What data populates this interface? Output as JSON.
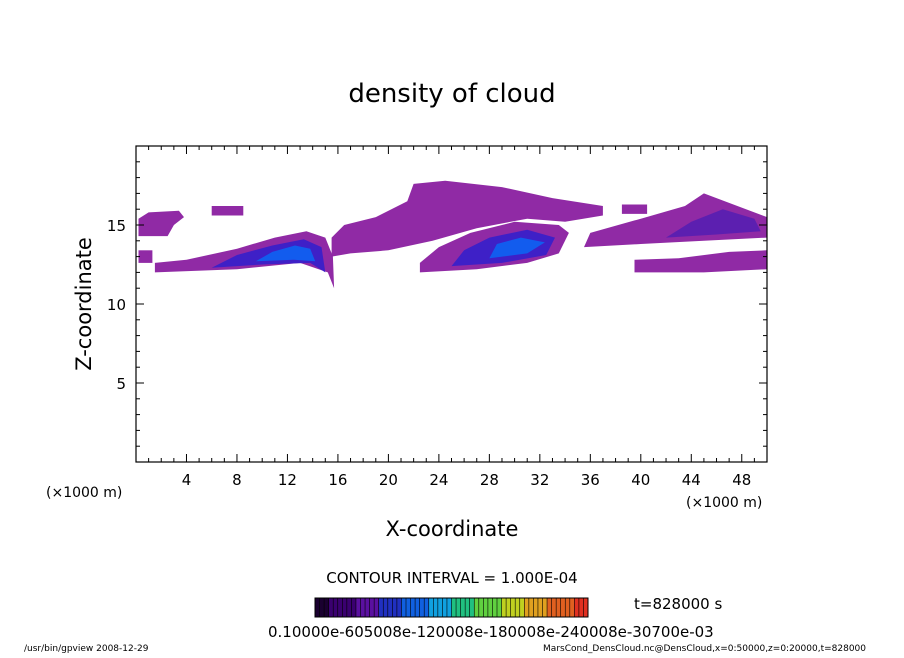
{
  "chart_data": {
    "type": "heatmap",
    "title": "density of cloud",
    "xlabel": "X-coordinate",
    "ylabel": "Z-coordinate",
    "x_unit": "(×1000 m)",
    "x_unit_right": "(×1000 m)",
    "xlim": [
      0,
      50
    ],
    "ylim": [
      0,
      20
    ],
    "x_ticks": [
      "4",
      "8",
      "12",
      "16",
      "20",
      "24",
      "28",
      "32",
      "36",
      "40",
      "44",
      "48"
    ],
    "x_tick_values": [
      4,
      8,
      12,
      16,
      20,
      24,
      28,
      32,
      36,
      40,
      44,
      48
    ],
    "y_ticks": [
      "5",
      "10",
      "15"
    ],
    "y_tick_values": [
      5,
      10,
      15
    ],
    "contour_interval": "CONTOUR INTERVAL = 1.000E-04",
    "time_label": "t=828000 s",
    "colorbar_labels": "0.10000e-605008e-120008e-180008e-240008e-30700e-03",
    "colorbar_min": 0.0001,
    "colorbar_max": 0.0007,
    "colorbar_colors": [
      "#1a0030",
      "#3a0070",
      "#5a10a0",
      "#2030c0",
      "#1060e0",
      "#10a0e0",
      "#20c080",
      "#60d040",
      "#c0d020",
      "#e0a020",
      "#e06020",
      "#e03020"
    ],
    "cloud_colors": [
      "#8a1fa0",
      "#5a1fb0",
      "#3a20c8",
      "#1a40e0",
      "#1060f0"
    ],
    "cloud_regions": [
      {
        "name": "left-band-wedge",
        "level": 0,
        "points": [
          [
            1.5,
            12.0
          ],
          [
            8,
            12.2
          ],
          [
            13,
            12.6
          ],
          [
            15.2,
            12.0
          ],
          [
            15.7,
            11.0
          ],
          [
            15.6,
            13.0
          ],
          [
            15.0,
            14.2
          ],
          [
            13.5,
            14.6
          ],
          [
            11,
            14.2
          ],
          [
            8,
            13.5
          ],
          [
            4,
            12.8
          ],
          [
            1.5,
            12.6
          ]
        ]
      },
      {
        "name": "left-band-core",
        "level": 2,
        "points": [
          [
            6,
            12.3
          ],
          [
            10,
            12.5
          ],
          [
            13.8,
            12.6
          ],
          [
            15.0,
            12.0
          ],
          [
            14.7,
            13.6
          ],
          [
            13.3,
            14.1
          ],
          [
            10.8,
            13.7
          ],
          [
            8,
            13.1
          ]
        ]
      },
      {
        "name": "left-band-inner",
        "level": 4,
        "points": [
          [
            9.5,
            12.7
          ],
          [
            12.5,
            12.8
          ],
          [
            14.2,
            12.7
          ],
          [
            13.8,
            13.5
          ],
          [
            12.6,
            13.7
          ],
          [
            10.8,
            13.3
          ]
        ]
      },
      {
        "name": "left-isolated-top",
        "level": 0,
        "points": [
          [
            0.2,
            14.3
          ],
          [
            2.5,
            14.3
          ],
          [
            3,
            15.0
          ],
          [
            3.8,
            15.5
          ],
          [
            3.4,
            15.9
          ],
          [
            1,
            15.8
          ],
          [
            0.2,
            15.4
          ]
        ]
      },
      {
        "name": "left-isolated-mid",
        "level": 0,
        "points": [
          [
            0.2,
            12.6
          ],
          [
            1.3,
            12.6
          ],
          [
            1.3,
            13.4
          ],
          [
            0.2,
            13.4
          ]
        ]
      },
      {
        "name": "left-speck",
        "level": 0,
        "points": [
          [
            6,
            15.6
          ],
          [
            8.5,
            15.6
          ],
          [
            8.5,
            16.2
          ],
          [
            6,
            16.2
          ]
        ]
      },
      {
        "name": "middle-upper-band",
        "level": 0,
        "points": [
          [
            15.5,
            13.0
          ],
          [
            17,
            13.2
          ],
          [
            20,
            13.4
          ],
          [
            23.5,
            14.0
          ],
          [
            27,
            14.8
          ],
          [
            31,
            15.4
          ],
          [
            34,
            15.2
          ],
          [
            37,
            15.6
          ],
          [
            37,
            16.2
          ],
          [
            33,
            16.7
          ],
          [
            29,
            17.4
          ],
          [
            24.5,
            17.8
          ],
          [
            22,
            17.6
          ],
          [
            21.5,
            16.5
          ],
          [
            19,
            15.5
          ],
          [
            16.5,
            15.0
          ],
          [
            15.5,
            14.2
          ]
        ]
      },
      {
        "name": "middle-lower-wedge",
        "level": 0,
        "points": [
          [
            22.5,
            12.0
          ],
          [
            27,
            12.2
          ],
          [
            31,
            12.6
          ],
          [
            33.5,
            13.2
          ],
          [
            34.3,
            14.5
          ],
          [
            33.5,
            15.0
          ],
          [
            30,
            15.2
          ],
          [
            26.5,
            14.5
          ],
          [
            24,
            13.6
          ],
          [
            22.5,
            12.6
          ]
        ]
      },
      {
        "name": "middle-lower-core",
        "level": 2,
        "points": [
          [
            25,
            12.4
          ],
          [
            29,
            12.6
          ],
          [
            32.5,
            13.1
          ],
          [
            33.2,
            14.2
          ],
          [
            31,
            14.7
          ],
          [
            28,
            14.2
          ],
          [
            26,
            13.4
          ]
        ]
      },
      {
        "name": "middle-lower-inner",
        "level": 4,
        "points": [
          [
            28,
            12.9
          ],
          [
            31,
            13.2
          ],
          [
            32.4,
            13.9
          ],
          [
            30.5,
            14.2
          ],
          [
            28.6,
            13.8
          ]
        ]
      },
      {
        "name": "right-upper-band",
        "level": 0,
        "points": [
          [
            35.5,
            13.6
          ],
          [
            40,
            13.8
          ],
          [
            45,
            14.0
          ],
          [
            50,
            14.2
          ],
          [
            50,
            15.5
          ],
          [
            47,
            16.4
          ],
          [
            45,
            17.0
          ],
          [
            43.5,
            16.2
          ],
          [
            40,
            15.4
          ],
          [
            36,
            14.5
          ]
        ]
      },
      {
        "name": "right-upper-core",
        "level": 1,
        "points": [
          [
            42,
            14.2
          ],
          [
            46,
            14.4
          ],
          [
            49.5,
            14.6
          ],
          [
            49,
            15.4
          ],
          [
            46.5,
            16.0
          ],
          [
            44,
            15.2
          ]
        ]
      },
      {
        "name": "right-lower-band",
        "level": 0,
        "points": [
          [
            39.5,
            12.0
          ],
          [
            45,
            12.0
          ],
          [
            50,
            12.2
          ],
          [
            50,
            13.4
          ],
          [
            47,
            13.3
          ],
          [
            43,
            12.9
          ],
          [
            39.5,
            12.8
          ]
        ]
      },
      {
        "name": "right-isolated-top",
        "level": 0,
        "points": [
          [
            38.5,
            15.7
          ],
          [
            40.5,
            15.7
          ],
          [
            40.5,
            16.3
          ],
          [
            38.5,
            16.3
          ]
        ]
      }
    ]
  },
  "footer": {
    "left": "/usr/bin/gpview   2008-12-29",
    "right": "MarsCond_DensCloud.nc@DensCloud,x=0:50000,z=0:20000,t=828000"
  }
}
